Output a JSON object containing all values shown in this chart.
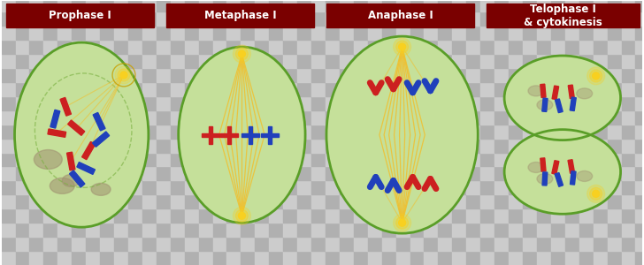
{
  "checker_light": "#cccccc",
  "checker_dark": "#b0b0b0",
  "checker_size": 16,
  "label_bg": "#7a0000",
  "label_fg": "#ffffff",
  "labels": [
    "Prophase I",
    "Metaphase I",
    "Anaphase I",
    "Telophase I\n& cytokinesis"
  ],
  "label_fontsize": 8.5,
  "cell_fill": "#c5e09a",
  "cell_edge": "#5a9e28",
  "cell_lw": 2.0,
  "spindle": "#f0c030",
  "centrosome": "#f8d020",
  "red": "#cc2020",
  "blue": "#2040bb",
  "gray_blob": "#a09070",
  "nuc_edge": "#7ab040",
  "fig_w": 7.28,
  "fig_h": 3.0,
  "dpi": 100
}
